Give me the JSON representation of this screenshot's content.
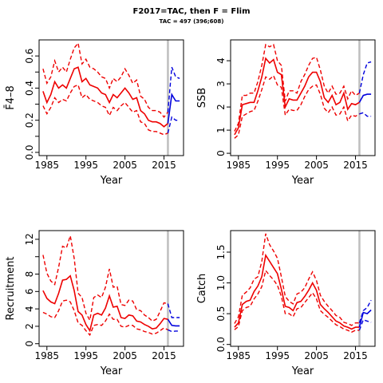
{
  "title": "F2017=TAC, then F = Flim",
  "subtitle": "TAC = 497 (396;608)",
  "colors": {
    "historic": "#ee0000",
    "projection": "#0000dd",
    "divider": "#bebebe"
  },
  "chart_data": [
    {
      "type": "line",
      "ylabel": "F̄4–8",
      "xlabel": "Year",
      "xlim": [
        1983,
        2020
      ],
      "ylim": [
        -0.02,
        0.7
      ],
      "yticks": [
        0,
        0.2,
        0.4,
        0.6
      ],
      "yticklabels": [
        "0.0",
        "0.2",
        "0.4",
        "0.6"
      ],
      "yminorticks": [
        0.1,
        0.3,
        0.5
      ],
      "xticks": [
        1985,
        1995,
        2005,
        2015
      ],
      "divider_year": 2016,
      "historic": {
        "years": [
          1984,
          1985,
          1986,
          1987,
          1988,
          1989,
          1990,
          1991,
          1992,
          1993,
          1994,
          1995,
          1996,
          1997,
          1998,
          1999,
          2000,
          2001,
          2002,
          2003,
          2004,
          2005,
          2006,
          2007,
          2008,
          2009,
          2010,
          2011,
          2012,
          2013,
          2014,
          2015,
          2016
        ],
        "mid": [
          0.38,
          0.31,
          0.36,
          0.44,
          0.4,
          0.42,
          0.4,
          0.46,
          0.52,
          0.53,
          0.44,
          0.46,
          0.42,
          0.41,
          0.4,
          0.37,
          0.36,
          0.31,
          0.36,
          0.34,
          0.37,
          0.4,
          0.37,
          0.33,
          0.34,
          0.26,
          0.24,
          0.2,
          0.19,
          0.19,
          0.18,
          0.16,
          0.18
        ],
        "lower": [
          0.29,
          0.24,
          0.28,
          0.34,
          0.31,
          0.33,
          0.32,
          0.37,
          0.41,
          0.42,
          0.34,
          0.36,
          0.33,
          0.32,
          0.31,
          0.29,
          0.28,
          0.23,
          0.28,
          0.26,
          0.29,
          0.31,
          0.28,
          0.25,
          0.26,
          0.19,
          0.18,
          0.14,
          0.13,
          0.13,
          0.12,
          0.11,
          0.12
        ],
        "upper": [
          0.52,
          0.43,
          0.47,
          0.57,
          0.5,
          0.53,
          0.5,
          0.58,
          0.65,
          0.68,
          0.55,
          0.58,
          0.53,
          0.52,
          0.5,
          0.47,
          0.46,
          0.4,
          0.46,
          0.44,
          0.47,
          0.52,
          0.48,
          0.43,
          0.45,
          0.35,
          0.33,
          0.28,
          0.26,
          0.26,
          0.25,
          0.22,
          0.25
        ]
      },
      "projection": {
        "years": [
          2016,
          2017,
          2018,
          2019
        ],
        "mid": [
          0.18,
          0.36,
          0.32,
          0.32
        ],
        "lower": [
          0.12,
          0.22,
          0.2,
          0.2
        ],
        "upper": [
          0.25,
          0.53,
          0.47,
          0.46
        ]
      }
    },
    {
      "type": "line",
      "ylabel": "SSB",
      "xlabel": "Year",
      "xlim": [
        1983,
        2020
      ],
      "ylim": [
        -0.1,
        4.9
      ],
      "yticks": [
        0,
        1,
        2,
        3,
        4
      ],
      "yticklabels": [
        "0",
        "1",
        "2",
        "3",
        "4"
      ],
      "yminorticks": [],
      "xticks": [
        1985,
        1995,
        2005,
        2015
      ],
      "divider_year": 2016,
      "historic": {
        "years": [
          1984,
          1985,
          1986,
          1987,
          1988,
          1989,
          1990,
          1991,
          1992,
          1993,
          1994,
          1995,
          1996,
          1997,
          1998,
          1999,
          2000,
          2001,
          2002,
          2003,
          2004,
          2005,
          2006,
          2007,
          2008,
          2009,
          2010,
          2011,
          2012,
          2013,
          2014,
          2015,
          2016
        ],
        "mid": [
          0.8,
          1.1,
          2.1,
          2.15,
          2.2,
          2.2,
          2.7,
          3.3,
          4.1,
          3.9,
          4.05,
          3.5,
          3.4,
          2.0,
          2.35,
          2.3,
          2.3,
          2.6,
          2.9,
          3.3,
          3.5,
          3.5,
          3.1,
          2.4,
          2.2,
          2.5,
          2.1,
          2.2,
          2.6,
          1.9,
          2.15,
          2.1,
          2.2
        ],
        "lower": [
          0.65,
          0.8,
          1.6,
          1.7,
          1.8,
          1.85,
          2.25,
          2.75,
          3.3,
          3.2,
          3.35,
          2.95,
          2.85,
          1.65,
          1.9,
          1.85,
          1.85,
          2.1,
          2.45,
          2.75,
          2.9,
          2.95,
          2.55,
          1.95,
          1.75,
          2.0,
          1.65,
          1.7,
          2.0,
          1.4,
          1.65,
          1.6,
          1.7
        ],
        "upper": [
          0.95,
          1.3,
          2.5,
          2.5,
          2.6,
          2.6,
          3.1,
          3.8,
          4.7,
          4.6,
          4.7,
          4.0,
          3.8,
          2.25,
          2.7,
          2.7,
          2.6,
          3.1,
          3.4,
          3.8,
          4.1,
          4.15,
          3.6,
          2.9,
          2.6,
          2.9,
          2.55,
          2.6,
          2.9,
          2.35,
          2.7,
          2.5,
          2.6
        ]
      },
      "projection": {
        "years": [
          2016,
          2017,
          2018,
          2019
        ],
        "mid": [
          2.2,
          2.5,
          2.55,
          2.55
        ],
        "lower": [
          1.7,
          1.75,
          1.6,
          1.6
        ],
        "upper": [
          2.6,
          3.4,
          3.9,
          3.95
        ]
      }
    },
    {
      "type": "line",
      "ylabel": "Recruitment",
      "xlabel": "Year",
      "xlim": [
        1983,
        2020
      ],
      "ylim": [
        -0.3,
        13.0
      ],
      "yticks": [
        0,
        2,
        4,
        6,
        8,
        12
      ],
      "yticklabels": [
        "0",
        "2",
        "4",
        "6",
        "8",
        "12"
      ],
      "yminorticks": [
        10
      ],
      "xticks": [
        1985,
        1995,
        2005,
        2015
      ],
      "divider_year": 2016,
      "historic": {
        "years": [
          1984,
          1985,
          1986,
          1987,
          1988,
          1989,
          1990,
          1991,
          1992,
          1993,
          1994,
          1995,
          1996,
          1997,
          1998,
          1999,
          2000,
          2001,
          2002,
          2003,
          2004,
          2005,
          2006,
          2007,
          2008,
          2009,
          2010,
          2011,
          2012,
          2013,
          2014,
          2015,
          2016
        ],
        "mid": [
          6.1,
          5.2,
          4.8,
          4.6,
          5.8,
          7.3,
          7.4,
          7.8,
          6.1,
          3.7,
          3.3,
          2.2,
          1.5,
          3.3,
          3.5,
          3.3,
          4.1,
          5.5,
          4.2,
          4.3,
          3.0,
          2.9,
          3.3,
          3.2,
          2.6,
          2.5,
          2.2,
          2.0,
          1.7,
          1.8,
          2.3,
          2.9,
          2.8
        ],
        "lower": [
          3.6,
          3.4,
          3.1,
          3.0,
          3.8,
          4.9,
          5.0,
          4.8,
          3.8,
          2.4,
          2.1,
          1.5,
          1.0,
          2.1,
          2.2,
          2.1,
          2.6,
          3.4,
          2.8,
          2.8,
          2.0,
          1.9,
          2.1,
          2.1,
          1.7,
          1.6,
          1.4,
          1.3,
          1.1,
          1.2,
          1.5,
          1.8,
          1.6
        ],
        "upper": [
          10.2,
          8.1,
          7.2,
          6.8,
          8.8,
          11.2,
          11.0,
          12.4,
          9.8,
          5.8,
          5.3,
          3.5,
          2.7,
          5.3,
          5.6,
          5.3,
          6.5,
          8.6,
          6.5,
          6.6,
          4.5,
          4.4,
          5.0,
          4.9,
          3.9,
          3.8,
          3.3,
          3.0,
          2.6,
          2.8,
          3.7,
          4.7,
          4.6
        ]
      },
      "projection": {
        "years": [
          2016,
          2017,
          2018,
          2019
        ],
        "mid": [
          2.8,
          2.1,
          2.05,
          2.05
        ],
        "lower": [
          1.6,
          1.4,
          1.45,
          1.45
        ],
        "upper": [
          4.6,
          3.0,
          3.0,
          3.0
        ]
      }
    },
    {
      "type": "line",
      "ylabel": "Catch",
      "xlabel": "Year",
      "xlim": [
        1983,
        2020
      ],
      "ylim": [
        -0.03,
        1.85
      ],
      "yticks": [
        0,
        0.5,
        1.0,
        1.5
      ],
      "yticklabels": [
        "0.0",
        "0.5",
        "1.0",
        "1.5"
      ],
      "yminorticks": [],
      "xticks": [
        1985,
        1995,
        2005,
        2015
      ],
      "divider_year": 2016,
      "historic": {
        "years": [
          1984,
          1985,
          1986,
          1987,
          1988,
          1989,
          1990,
          1991,
          1992,
          1993,
          1994,
          1995,
          1996,
          1997,
          1998,
          1999,
          2000,
          2001,
          2002,
          2003,
          2004,
          2005,
          2006,
          2007,
          2008,
          2009,
          2010,
          2011,
          2012,
          2013,
          2014,
          2015,
          2016
        ],
        "mid": [
          0.28,
          0.35,
          0.65,
          0.7,
          0.72,
          0.86,
          0.95,
          1.1,
          1.45,
          1.35,
          1.25,
          1.15,
          0.9,
          0.62,
          0.6,
          0.55,
          0.68,
          0.7,
          0.78,
          0.88,
          1.0,
          0.88,
          0.65,
          0.58,
          0.52,
          0.45,
          0.38,
          0.35,
          0.3,
          0.28,
          0.25,
          0.28,
          0.28
        ],
        "lower": [
          0.24,
          0.29,
          0.55,
          0.6,
          0.62,
          0.74,
          0.82,
          0.94,
          1.2,
          1.12,
          1.05,
          0.96,
          0.78,
          0.5,
          0.5,
          0.45,
          0.58,
          0.6,
          0.68,
          0.76,
          0.84,
          0.74,
          0.55,
          0.49,
          0.44,
          0.38,
          0.32,
          0.29,
          0.25,
          0.23,
          0.2,
          0.23,
          0.23
        ],
        "upper": [
          0.34,
          0.45,
          0.8,
          0.85,
          0.92,
          1.06,
          1.1,
          1.35,
          1.8,
          1.62,
          1.52,
          1.4,
          1.1,
          0.78,
          0.7,
          0.66,
          0.82,
          0.85,
          0.92,
          1.06,
          1.18,
          1.04,
          0.8,
          0.7,
          0.62,
          0.55,
          0.47,
          0.44,
          0.36,
          0.34,
          0.31,
          0.35,
          0.35
        ]
      },
      "projection": {
        "years": [
          2016,
          2017,
          2018,
          2019
        ],
        "mid": [
          0.28,
          0.52,
          0.5,
          0.56
        ],
        "lower": [
          0.23,
          0.4,
          0.38,
          0.36
        ],
        "upper": [
          0.35,
          0.55,
          0.6,
          0.72
        ]
      }
    }
  ]
}
